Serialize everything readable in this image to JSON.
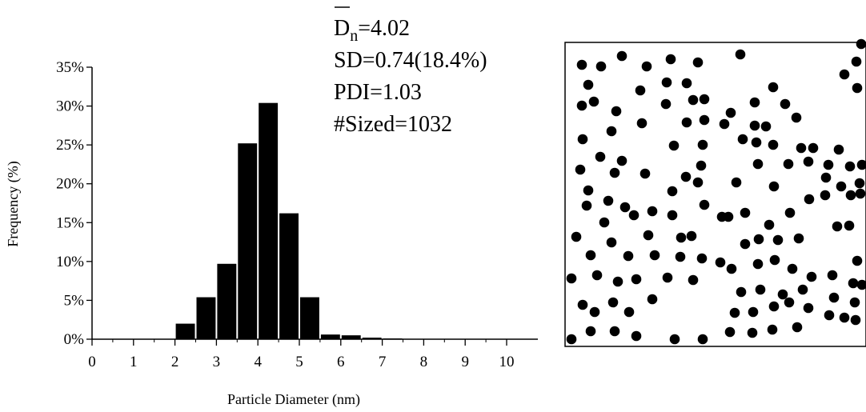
{
  "chart_data": {
    "type": "bar",
    "xlabel": "Particle Diameter (nm)",
    "ylabel": "Frequency (%)",
    "xlim": [
      0,
      10.8
    ],
    "ylim": [
      0,
      35
    ],
    "x_ticks": [
      "0",
      "1",
      "2",
      "3",
      "4",
      "5",
      "6",
      "7",
      "8",
      "9",
      "10"
    ],
    "y_ticks": [
      "0%",
      "5%",
      "10%",
      "15%",
      "20%",
      "25%",
      "30%",
      "35%"
    ],
    "bin_width": 0.5,
    "bin_centers": [
      0.25,
      0.75,
      1.25,
      1.75,
      2.25,
      2.75,
      3.25,
      3.75,
      4.25,
      4.75,
      5.25,
      5.75,
      6.25,
      6.75,
      7.25,
      7.75,
      8.25,
      8.75,
      9.25,
      9.75,
      10.25
    ],
    "values": [
      0,
      0,
      0,
      0,
      2.0,
      5.4,
      9.7,
      25.2,
      30.4,
      16.2,
      5.4,
      0.6,
      0.5,
      0.2,
      0.1,
      0.05,
      0.05,
      0,
      0,
      0,
      0
    ],
    "grid": false,
    "legend": "none"
  },
  "stats": {
    "dn_symbol": "D",
    "dn_subscript": "n",
    "dn_value": "=4.02",
    "sd": "SD=0.74(18.4%)",
    "pdi": "PDI=1.03",
    "sized": "#Sized=1032"
  }
}
